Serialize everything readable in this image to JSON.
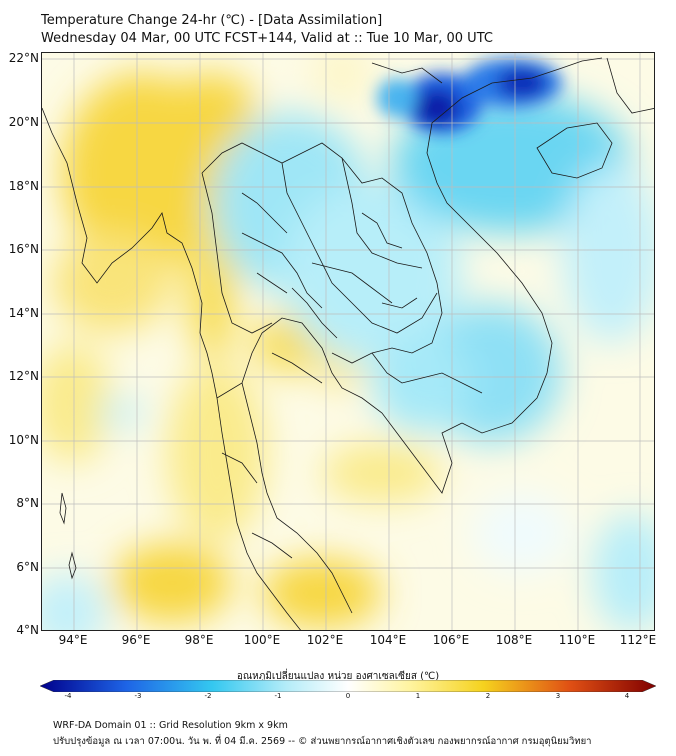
{
  "title": {
    "line1": "Temperature Change 24-hr (℃) - [Data Assimilation]",
    "line2": "Wednesday 04 Mar, 00 UTC FCST+144, Valid at :: Tue 10 Mar, 00 UTC"
  },
  "axes": {
    "lat_labels": [
      "22°N",
      "20°N",
      "18°N",
      "16°N",
      "14°N",
      "12°N",
      "10°N",
      "8°N",
      "6°N",
      "4°N"
    ],
    "lon_labels": [
      "94°E",
      "96°E",
      "98°E",
      "100°E",
      "102°E",
      "104°E",
      "106°E",
      "108°E",
      "110°E",
      "112°E"
    ]
  },
  "colorbar": {
    "title": "อุณหภูมิเปลี่ยนแปลง หน่วย องศาเซลเซียส (℃)",
    "ticks": [
      "-4",
      "-3",
      "-2",
      "-1",
      "0",
      "1",
      "2",
      "3",
      "4"
    ],
    "colors": {
      "strong_cold": "#00008b",
      "cold": "#1e64e6",
      "cool": "#34c8f0",
      "slight_cool": "#b4ecf8",
      "neutral": "#ffffff",
      "slight_warm": "#fff4a0",
      "warm": "#f5d21e",
      "hot": "#e05014",
      "strong_hot": "#800000"
    }
  },
  "footer": {
    "line1": "WRF-DA Domain 01 :: Grid Resolution 9km x 9km",
    "line2": "ปรับปรุงข้อมูล ณ เวลา 07:00น. วัน พ. ที่ 04 มี.ค. 2569 -- © ส่วนพยากรณ์อากาศเชิงตัวเลข กองพยากรณ์อากาศ กรมอุตุนิยมวิทยา"
  },
  "map": {
    "grid": true,
    "lat_range": [
      "4°N",
      "22°N"
    ],
    "lon_range": [
      "93°E",
      "112.5°E"
    ]
  }
}
